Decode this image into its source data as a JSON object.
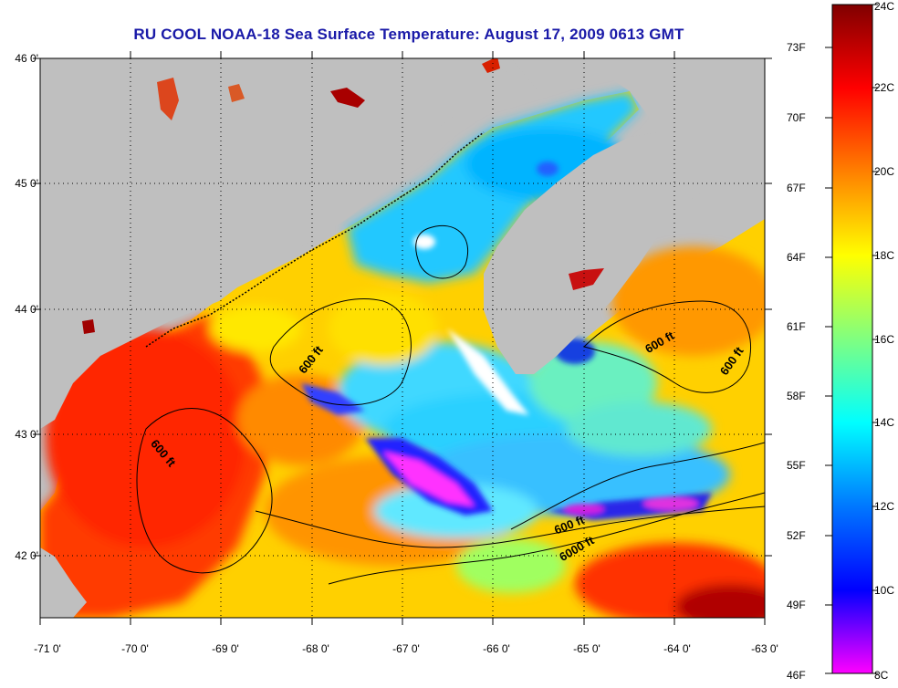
{
  "title": "RU COOL  NOAA-18  Sea Surface Temperature:  August 17, 2009 0613 GMT",
  "map": {
    "lat_ticks": [
      "46 0'",
      "45 0'",
      "44 0'",
      "43 0'",
      "42 0'"
    ],
    "lon_ticks": [
      "-71 0'",
      "-70 0'",
      "-69 0'",
      "-68 0'",
      "-67 0'",
      "-66 0'",
      "-65 0'",
      "-64 0'",
      "-63 0'"
    ],
    "lat_range": [
      41.5,
      46.0
    ],
    "lon_range": [
      -71.0,
      -63.0
    ],
    "land_color": "#bfbfbf",
    "graticule": "dotted"
  },
  "contour_labels": [
    {
      "text": "600 ft"
    },
    {
      "text": "600 ft"
    },
    {
      "text": "600 ft"
    },
    {
      "text": "600 ft"
    },
    {
      "text": "600 ft"
    },
    {
      "text": "6000 ft"
    }
  ],
  "colorbar": {
    "fahrenheit_labels": [
      "73F",
      "70F",
      "67F",
      "64F",
      "61F",
      "58F",
      "55F",
      "52F",
      "49F",
      "46F"
    ],
    "celsius_labels": [
      "24C",
      "22C",
      "20C",
      "18C",
      "16C",
      "14C",
      "12C",
      "10C",
      "8C"
    ],
    "range_c": [
      8,
      24
    ],
    "colors": {
      "c8": "#ff00ff",
      "c10": "#0000ff",
      "c14": "#00ffff",
      "c18": "#ffff00",
      "c22": "#ff0000",
      "c24": "#800000"
    }
  }
}
